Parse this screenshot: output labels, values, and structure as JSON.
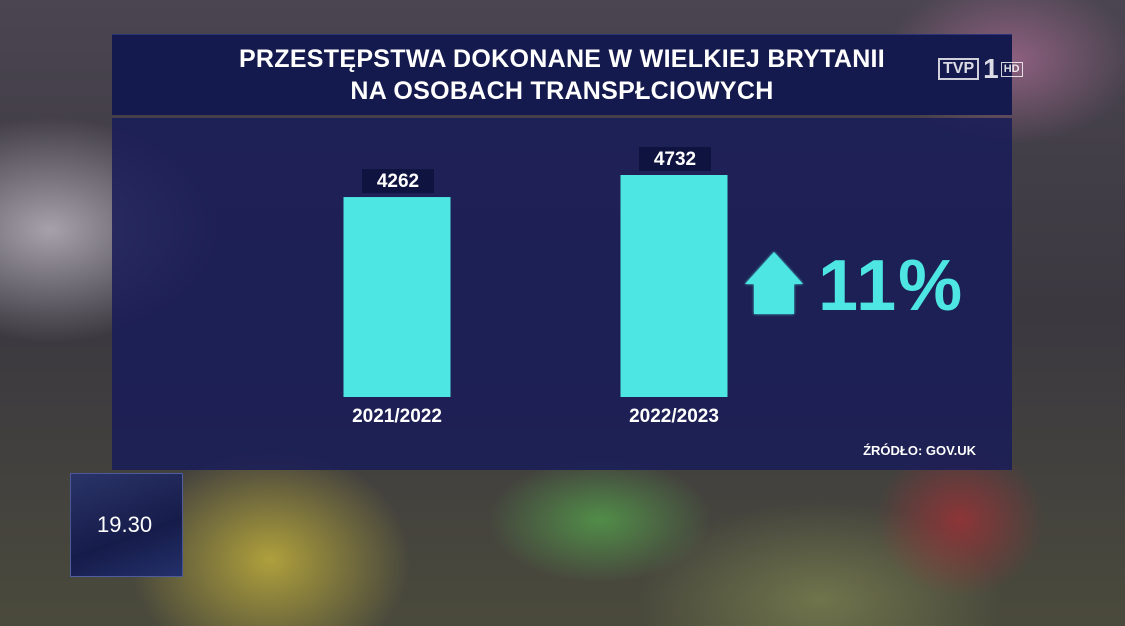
{
  "title_lines": [
    "PRZESTĘPSTWA DOKONANE W WIELKIEJ BRYTANII",
    "NA OSOBACH TRANSPŁCIOWYCH"
  ],
  "broadcaster": {
    "logo_text": "TVP",
    "channel_number": "1",
    "badge": "HD"
  },
  "clock": "19.30",
  "colors": {
    "bar": "#4de6e3",
    "panel": "#181c58",
    "title_bg": "#151a4e",
    "text": "#ffffff"
  },
  "chart_data": {
    "type": "bar",
    "categories": [
      "2021/2022",
      "2022/2023"
    ],
    "values": [
      4262,
      4732
    ],
    "value_labels": [
      "4262",
      "4732"
    ],
    "change": {
      "direction": "up",
      "label": "11%"
    },
    "source": "ŹRÓDŁO: GOV.UK"
  }
}
